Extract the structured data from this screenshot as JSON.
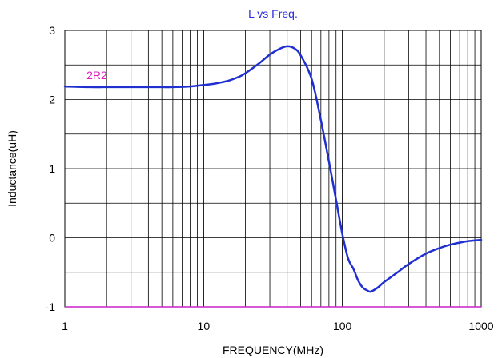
{
  "chart_data": {
    "type": "line",
    "title": "L vs Freq.",
    "xlabel": "FREQUENCY(MHz)",
    "ylabel": "Inductance(uH)",
    "xscale": "log",
    "xlim": [
      1,
      1000
    ],
    "ylim": [
      -1,
      3
    ],
    "grid": true,
    "x_ticks": [
      1,
      10,
      100,
      1000
    ],
    "x_tick_labels": [
      "1",
      "10",
      "100",
      "1000"
    ],
    "y_ticks": [
      -1,
      0,
      1,
      2,
      3
    ],
    "y_tick_labels": [
      "-1",
      "0",
      "1",
      "2",
      "3"
    ],
    "series": [
      {
        "name": "2R2",
        "color": "#1f2fd0",
        "label_color": "#e020c0",
        "x": [
          1,
          1.5,
          2,
          3,
          4,
          5,
          6,
          8,
          10,
          12,
          15,
          18,
          20,
          25,
          30,
          35,
          40,
          45,
          50,
          60,
          70,
          80,
          90,
          100,
          110,
          120,
          130,
          140,
          150,
          160,
          180,
          200,
          250,
          300,
          400,
          500,
          600,
          700,
          800,
          1000
        ],
        "values": [
          2.19,
          2.18,
          2.18,
          2.18,
          2.18,
          2.18,
          2.18,
          2.19,
          2.21,
          2.23,
          2.27,
          2.33,
          2.38,
          2.52,
          2.65,
          2.73,
          2.77,
          2.74,
          2.64,
          2.3,
          1.7,
          1.1,
          0.55,
          0.05,
          -0.3,
          -0.45,
          -0.62,
          -0.72,
          -0.76,
          -0.78,
          -0.72,
          -0.64,
          -0.5,
          -0.38,
          -0.23,
          -0.15,
          -0.1,
          -0.07,
          -0.05,
          -0.03
        ]
      }
    ],
    "baseline": {
      "value": -1,
      "color": "#cc22cc"
    }
  }
}
